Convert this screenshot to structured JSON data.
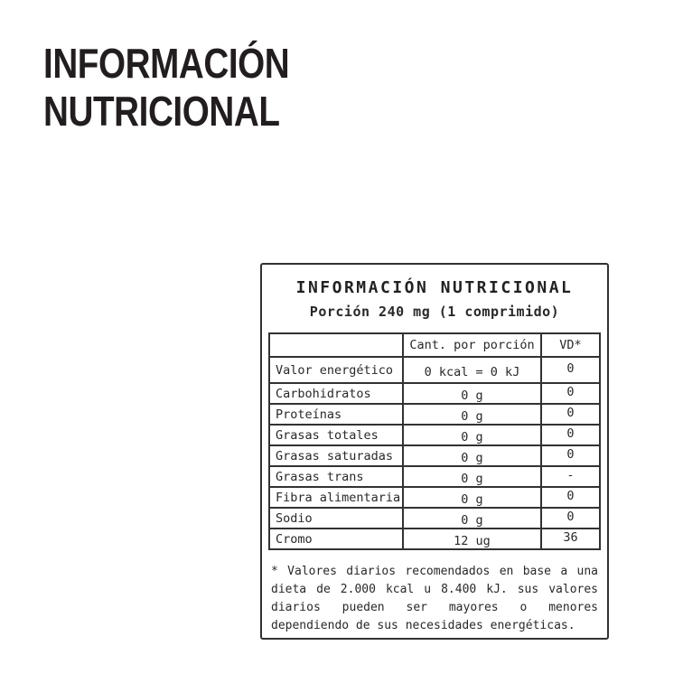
{
  "page": {
    "heading_line1": "INFORMACIÓN",
    "heading_line2": "NUTRICIONAL"
  },
  "label": {
    "title": "INFORMACIÓN NUTRICIONAL",
    "portion": "Porción 240 mg (1 comprimido)",
    "table": {
      "columns": [
        "",
        "Cant. por porción",
        "VD*"
      ],
      "rows": [
        {
          "name": "Valor energético",
          "amount": "0 kcal = 0 kJ",
          "vd": "0"
        },
        {
          "name": "Carbohidratos",
          "amount": "0 g",
          "vd": "0"
        },
        {
          "name": "Proteínas",
          "amount": "0 g",
          "vd": "0"
        },
        {
          "name": "Grasas totales",
          "amount": "0 g",
          "vd": "0"
        },
        {
          "name": "Grasas saturadas",
          "amount": "0 g",
          "vd": "0"
        },
        {
          "name": "Grasas trans",
          "amount": "0 g",
          "vd": "-"
        },
        {
          "name": "Fibra alimentaria",
          "amount": "0 g",
          "vd": "0"
        },
        {
          "name": "Sodio",
          "amount": "0 g",
          "vd": "0"
        },
        {
          "name": "Cromo",
          "amount": "12 ug",
          "vd": "36"
        }
      ]
    },
    "footnote": "* Valores diarios recomendados en base a una dieta de 2.000 kcal u 8.400 kJ. sus valores diarios pueden ser mayores o menores dependiendo de sus necesidades energéticas."
  },
  "colors": {
    "background": "#ffffff",
    "text": "#221e1f",
    "border": "#333132"
  }
}
